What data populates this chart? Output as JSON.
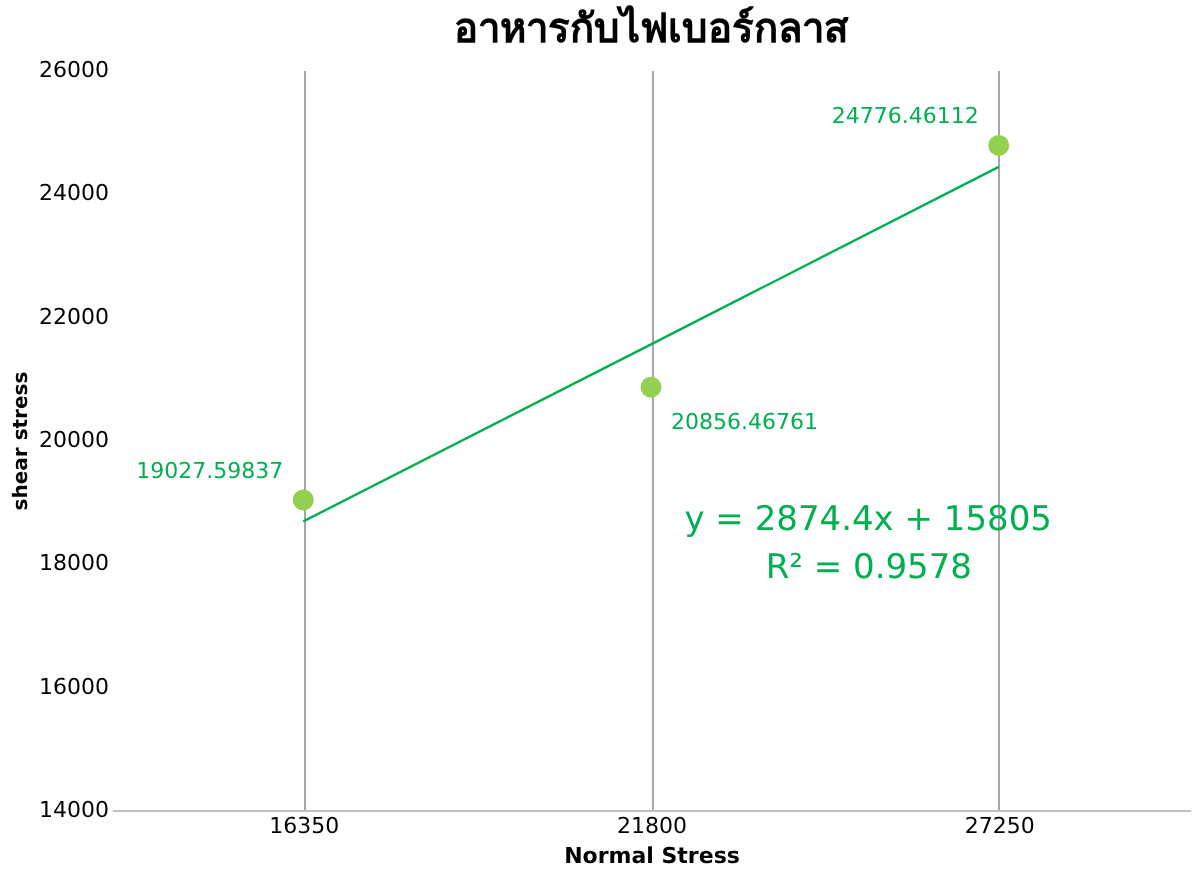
{
  "chart_data": {
    "type": "scatter",
    "title": "อาหารกับไฟเบอร์กลาส",
    "xlabel": "Normal Stress",
    "ylabel": "shear stress",
    "categories": [
      "16350",
      "21800",
      "27250"
    ],
    "series": [
      {
        "color": "#92d050",
        "values": [
          19027.59837,
          20856.46761,
          24776.46112
        ],
        "marker": "circle",
        "value_labels": [
          "19027.59837",
          "20856.46761",
          "24776.46112"
        ]
      },
      {
        "type": "line",
        "color": "#00b050",
        "values": [
          18680,
          21550,
          24430
        ],
        "marker": "none",
        "line_style": "solid"
      }
    ],
    "ylim": [
      14000,
      26000
    ],
    "yticks": [
      14000,
      16000,
      18000,
      20000,
      22000,
      24000,
      26000
    ],
    "grid": "x",
    "annotations": [
      "y = 2874.4x + 15805",
      "R² = 0.9578"
    ]
  }
}
